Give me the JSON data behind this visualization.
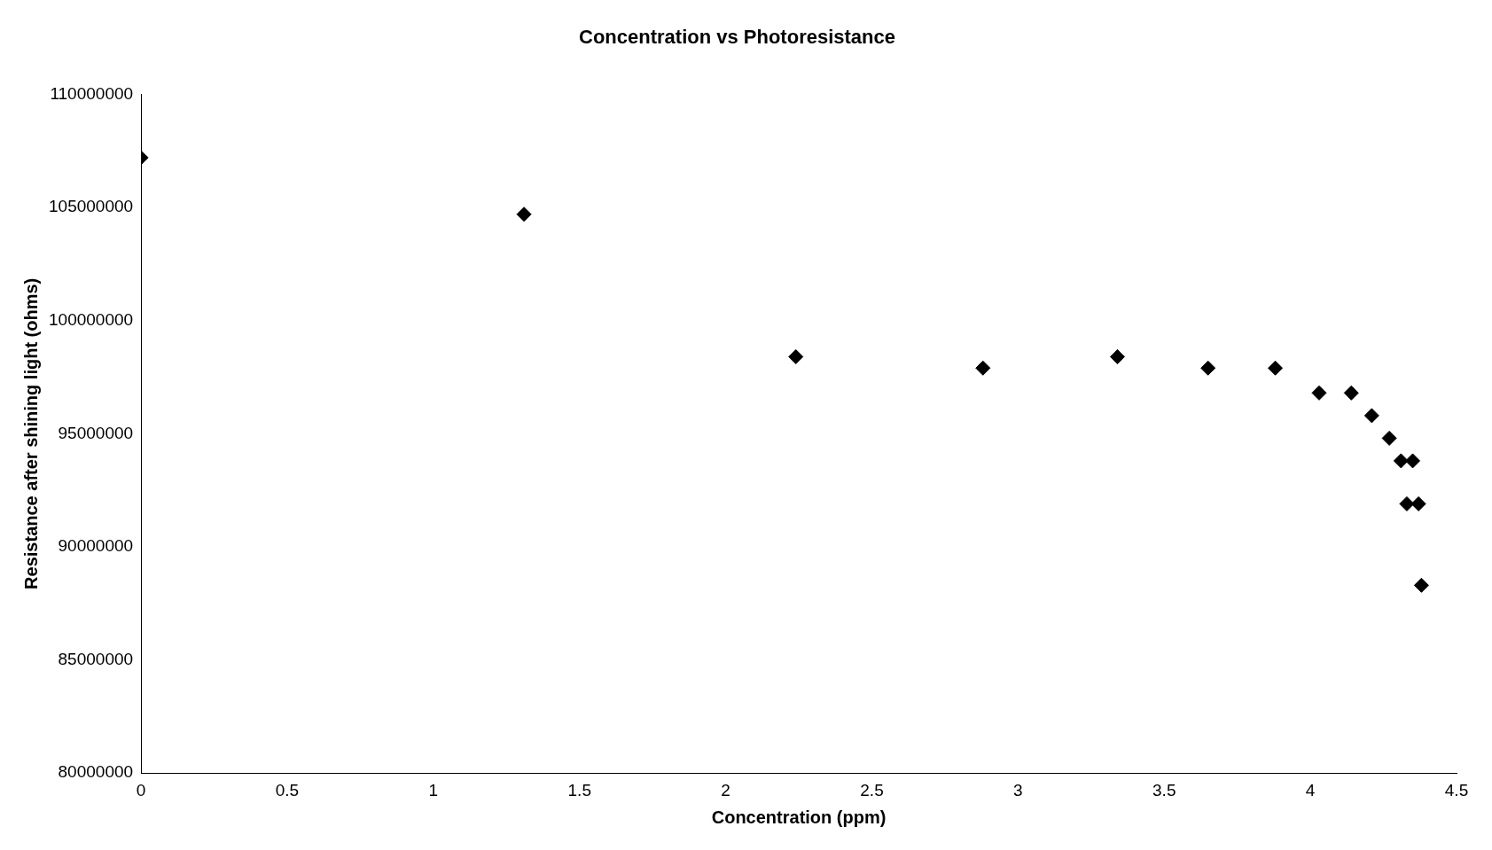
{
  "chart_data": {
    "type": "scatter",
    "title": "Concentration vs Photoresistance",
    "xlabel": "Concentration (ppm)",
    "ylabel": "Resistance after shining light (ohms)",
    "x": [
      0,
      1.31,
      2.24,
      2.88,
      3.34,
      3.65,
      3.88,
      4.03,
      4.14,
      4.21,
      4.27,
      4.31,
      4.35,
      4.33,
      4.37,
      4.38
    ],
    "values": [
      107200000,
      104700000,
      98400000,
      97900000,
      98400000,
      97900000,
      97900000,
      96800000,
      96800000,
      95800000,
      94800000,
      93800000,
      93800000,
      91900000,
      91900000,
      88300000
    ],
    "color": "#000000",
    "marker": "diamond",
    "grid": false,
    "legend": false,
    "xlim": [
      0,
      4.5
    ],
    "xticks": [
      0,
      0.5,
      1,
      1.5,
      2,
      2.5,
      3,
      3.5,
      4,
      4.5
    ],
    "ylim": [
      80000000,
      110000000
    ],
    "yticks": [
      80000000,
      85000000,
      90000000,
      95000000,
      100000000,
      105000000,
      110000000
    ]
  }
}
